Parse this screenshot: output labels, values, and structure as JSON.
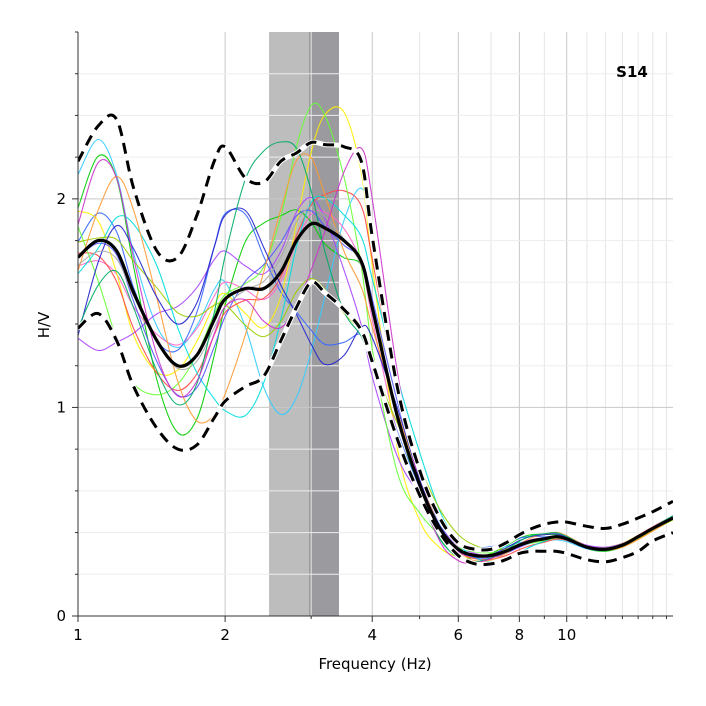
{
  "chart_data": {
    "type": "line",
    "label": "S14",
    "xlabel": "Frequency (Hz)",
    "ylabel": "H/V",
    "xscale": "log",
    "xlim": [
      1,
      16.5
    ],
    "ylim": [
      0,
      2.8
    ],
    "xticks": [
      1,
      2,
      4,
      6,
      8,
      10
    ],
    "yticks": [
      0,
      1,
      2
    ],
    "grid": true,
    "peak_bands": [
      {
        "from": 2.46,
        "to": 3.42,
        "color": "#bdbdbd"
      },
      {
        "from": 2.97,
        "to": 3.42,
        "color": "#9b9b9f"
      }
    ],
    "window_colors": [
      "#00cc00",
      "#33ccff",
      "#ff66cc",
      "#3366ff",
      "#ffee00",
      "#aa44ff",
      "#ff4444",
      "#66ff33",
      "#00dddd",
      "#5555ff",
      "#99cc00",
      "#ff9933",
      "#2222cc",
      "#aaaaaa",
      "#00aa66",
      "#cc33cc"
    ],
    "mean_curve": {
      "freq": [
        1,
        1.1,
        1.2,
        1.3,
        1.45,
        1.6,
        1.75,
        1.9,
        2.0,
        2.2,
        2.4,
        2.6,
        2.8,
        3.0,
        3.2,
        3.5,
        3.8,
        4.0,
        4.5,
        5.0,
        5.5,
        6.0,
        6.5,
        7.0,
        7.5,
        8.0,
        8.5,
        9.0,
        9.5,
        10,
        11,
        12,
        13,
        14,
        15,
        16.5
      ],
      "hv": [
        1.72,
        1.8,
        1.75,
        1.55,
        1.32,
        1.2,
        1.25,
        1.42,
        1.52,
        1.57,
        1.57,
        1.65,
        1.8,
        1.88,
        1.86,
        1.8,
        1.7,
        1.48,
        0.96,
        0.63,
        0.42,
        0.32,
        0.29,
        0.29,
        0.31,
        0.34,
        0.36,
        0.37,
        0.38,
        0.37,
        0.33,
        0.32,
        0.34,
        0.38,
        0.42,
        0.47
      ]
    },
    "mean_plus_std": {
      "freq": [
        1,
        1.1,
        1.2,
        1.3,
        1.45,
        1.6,
        1.75,
        1.9,
        2.0,
        2.2,
        2.4,
        2.6,
        2.8,
        3.0,
        3.2,
        3.5,
        3.8,
        4.0,
        4.5,
        5.0,
        5.5,
        6.0,
        6.5,
        7.0,
        7.5,
        8.0,
        8.5,
        9.0,
        9.5,
        10,
        11,
        12,
        13,
        14,
        15,
        16.5
      ],
      "hv": [
        2.18,
        2.35,
        2.38,
        2.05,
        1.75,
        1.72,
        1.92,
        2.18,
        2.25,
        2.1,
        2.08,
        2.18,
        2.22,
        2.27,
        2.26,
        2.25,
        2.18,
        1.82,
        1.1,
        0.7,
        0.47,
        0.35,
        0.32,
        0.32,
        0.35,
        0.39,
        0.42,
        0.44,
        0.45,
        0.45,
        0.43,
        0.42,
        0.44,
        0.47,
        0.5,
        0.55
      ]
    },
    "mean_minus_std": {
      "freq": [
        1,
        1.1,
        1.2,
        1.3,
        1.45,
        1.6,
        1.75,
        1.9,
        2.0,
        2.2,
        2.4,
        2.6,
        2.8,
        3.0,
        3.2,
        3.5,
        3.8,
        4.0,
        4.5,
        5.0,
        5.5,
        6.0,
        6.5,
        7.0,
        7.5,
        8.0,
        8.5,
        9.0,
        9.5,
        10,
        11,
        12,
        13,
        14,
        15,
        16.5
      ],
      "hv": [
        1.38,
        1.45,
        1.32,
        1.1,
        0.9,
        0.8,
        0.82,
        0.95,
        1.03,
        1.1,
        1.15,
        1.32,
        1.48,
        1.6,
        1.55,
        1.47,
        1.37,
        1.22,
        0.85,
        0.58,
        0.4,
        0.29,
        0.25,
        0.25,
        0.27,
        0.3,
        0.31,
        0.31,
        0.31,
        0.3,
        0.27,
        0.26,
        0.28,
        0.31,
        0.36,
        0.4
      ]
    }
  }
}
